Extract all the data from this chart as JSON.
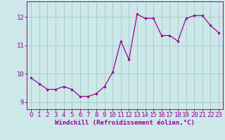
{
  "x": [
    0,
    1,
    2,
    3,
    4,
    5,
    6,
    7,
    8,
    9,
    10,
    11,
    12,
    13,
    14,
    15,
    16,
    17,
    18,
    19,
    20,
    21,
    22,
    23
  ],
  "y": [
    9.85,
    9.65,
    9.45,
    9.45,
    9.55,
    9.45,
    9.2,
    9.2,
    9.3,
    9.55,
    10.05,
    11.15,
    10.5,
    12.1,
    11.95,
    11.95,
    11.35,
    11.35,
    11.15,
    11.95,
    12.05,
    12.05,
    11.7,
    11.45
  ],
  "line_color": "#990099",
  "marker": "o",
  "marker_size": 2.0,
  "bg_color": "#cce8e8",
  "grid_color": "#aacccc",
  "xlabel": "Windchill (Refroidissement éolien,°C)",
  "xlabel_fontsize": 6.5,
  "tick_fontsize": 6.5,
  "xlim": [
    -0.5,
    23.5
  ],
  "ylim": [
    8.75,
    12.55
  ],
  "yticks": [
    9,
    10,
    11,
    12
  ],
  "xticks": [
    0,
    1,
    2,
    3,
    4,
    5,
    6,
    7,
    8,
    9,
    10,
    11,
    12,
    13,
    14,
    15,
    16,
    17,
    18,
    19,
    20,
    21,
    22,
    23
  ]
}
